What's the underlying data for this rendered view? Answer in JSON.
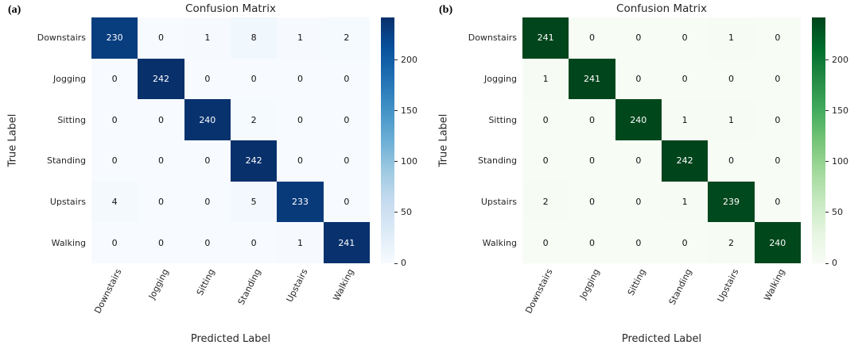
{
  "chart_data": [
    {
      "type": "heatmap",
      "panel_label": "(a)",
      "title": "Confusion Matrix",
      "xlabel": "Predicted Label",
      "ylabel": "True Label",
      "x_categories": [
        "Downstairs",
        "Jogging",
        "Sitting",
        "Standing",
        "Upstairs",
        "Walking"
      ],
      "y_categories": [
        "Downstairs",
        "Jogging",
        "Sitting",
        "Standing",
        "Upstairs",
        "Walking"
      ],
      "matrix": [
        [
          230,
          0,
          1,
          8,
          1,
          2
        ],
        [
          0,
          242,
          0,
          0,
          0,
          0
        ],
        [
          0,
          0,
          240,
          2,
          0,
          0
        ],
        [
          0,
          0,
          0,
          242,
          0,
          0
        ],
        [
          4,
          0,
          0,
          5,
          233,
          0
        ],
        [
          0,
          0,
          0,
          0,
          1,
          241
        ]
      ],
      "vmin": 0,
      "vmax": 242,
      "colormap": "Blues",
      "colormap_stops": [
        "#f7fbff",
        "#deebf7",
        "#c6dbef",
        "#9ecae1",
        "#6baed6",
        "#4292c6",
        "#2171b5",
        "#08519c",
        "#08306b"
      ],
      "colorbar_ticks": [
        0,
        50,
        100,
        150,
        200
      ],
      "annotation_light_color": "#ffffff",
      "annotation_dark_color": "#111111",
      "legend_position": "right-colorbar",
      "grid": false
    },
    {
      "type": "heatmap",
      "panel_label": "(b)",
      "title": "Confusion Matrix",
      "xlabel": "Predicted Label",
      "ylabel": "True Label",
      "x_categories": [
        "Downstairs",
        "Jogging",
        "Sitting",
        "Standing",
        "Upstairs",
        "Walking"
      ],
      "y_categories": [
        "Downstairs",
        "Jogging",
        "Sitting",
        "Standing",
        "Upstairs",
        "Walking"
      ],
      "matrix": [
        [
          241,
          0,
          0,
          0,
          1,
          0
        ],
        [
          1,
          241,
          0,
          0,
          0,
          0
        ],
        [
          0,
          0,
          240,
          1,
          1,
          0
        ],
        [
          0,
          0,
          0,
          242,
          0,
          0
        ],
        [
          2,
          0,
          0,
          1,
          239,
          0
        ],
        [
          0,
          0,
          0,
          0,
          2,
          240
        ]
      ],
      "vmin": 0,
      "vmax": 242,
      "colormap": "Greens",
      "colormap_stops": [
        "#f7fcf5",
        "#e5f5e0",
        "#c7e9c0",
        "#a1d99b",
        "#74c476",
        "#41ab5d",
        "#238b45",
        "#006d2c",
        "#00441b"
      ],
      "colorbar_ticks": [
        0,
        50,
        100,
        150,
        200
      ],
      "annotation_light_color": "#ffffff",
      "annotation_dark_color": "#111111",
      "legend_position": "right-colorbar",
      "grid": false
    }
  ]
}
